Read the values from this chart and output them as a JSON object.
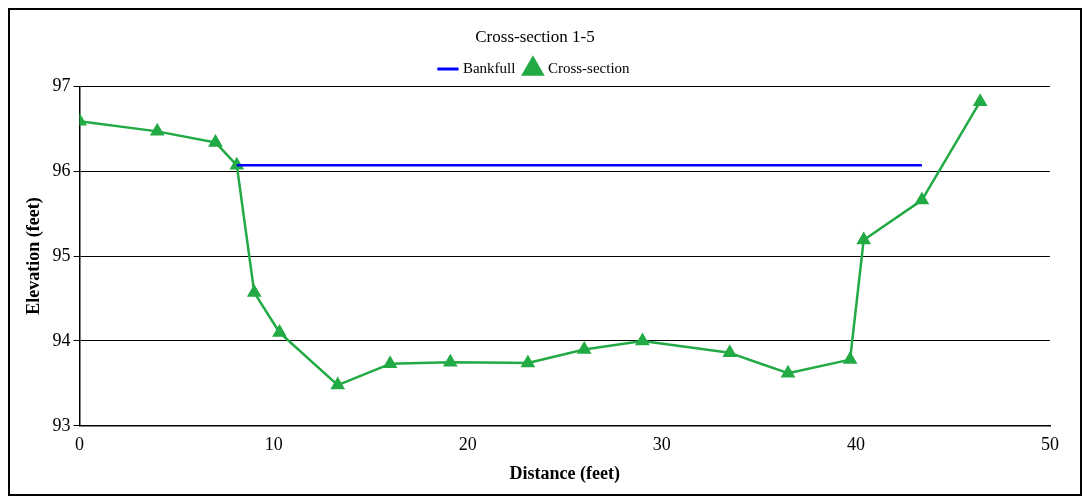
{
  "chart_data": {
    "type": "line",
    "title": "Cross-section 1-5",
    "xlabel": "Distance (feet)",
    "ylabel": "Elevation (feet)",
    "xlim": [
      0,
      50
    ],
    "xticks": [
      0,
      10,
      20,
      30,
      40,
      50
    ],
    "ylim": [
      93,
      97
    ],
    "yticks": [
      93,
      94,
      95,
      96,
      97
    ],
    "grid": "y",
    "legend": "top",
    "series": [
      {
        "name": "Bankfull",
        "color": "#0000ff",
        "marker": "none",
        "x": [
          8.1,
          43.4
        ],
        "values": [
          96.07,
          96.07
        ]
      },
      {
        "name": "Cross-section",
        "color": "#22aa44",
        "marker": "triangle",
        "x": [
          0,
          4.0,
          7.0,
          8.1,
          9.0,
          10.3,
          13.3,
          16.0,
          19.1,
          23.1,
          26.0,
          29.0,
          33.5,
          36.5,
          39.7,
          40.4,
          43.4,
          46.4
        ],
        "values": [
          96.59,
          96.47,
          96.34,
          96.07,
          94.57,
          94.1,
          93.48,
          93.73,
          93.75,
          93.74,
          93.9,
          94.0,
          93.86,
          93.62,
          93.78,
          95.19,
          95.66,
          96.82
        ]
      }
    ]
  }
}
